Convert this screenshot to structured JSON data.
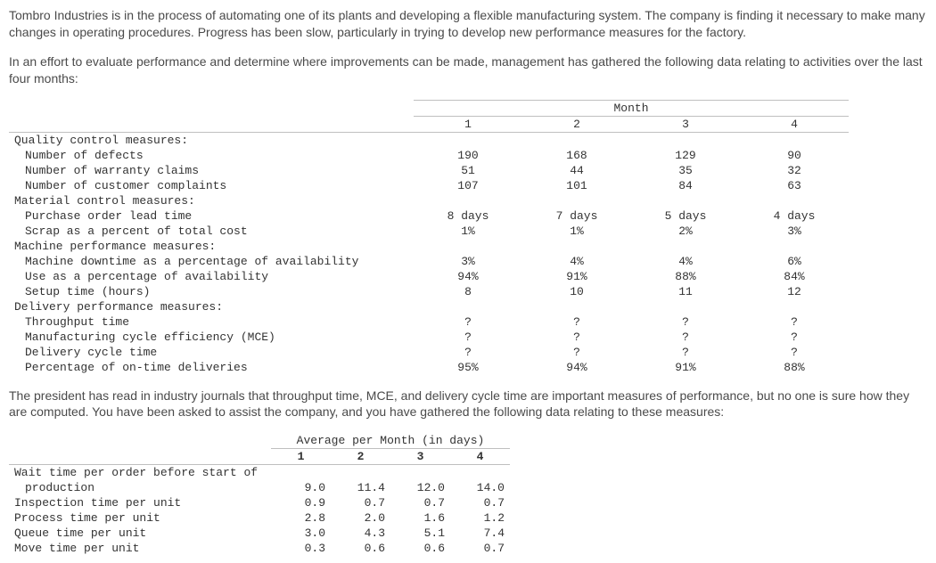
{
  "paragraphs": {
    "p1": "Tombro Industries is in the process of automating one of its plants and developing a flexible manufacturing system. The company is finding it necessary to make many changes in operating procedures. Progress has been slow, particularly in trying to develop new performance measures for the factory.",
    "p2": "In an effort to evaluate performance and determine where improvements can be made, management has gathered the following data relating to activities over the last four months:",
    "p3": "The president has read in industry journals that throughput time, MCE, and delivery cycle time are important measures of performance, but no one is sure how they are computed. You have been asked to assist the company, and you have gathered the following data relating to these measures:"
  },
  "main": {
    "group_header": "Month",
    "cols": [
      "1",
      "2",
      "3",
      "4"
    ],
    "sections": [
      {
        "label": "Quality control measures:",
        "rows": [
          {
            "label": "Number of defects",
            "v": [
              "190",
              "168",
              "129",
              "90"
            ]
          },
          {
            "label": "Number of warranty claims",
            "v": [
              "51",
              "44",
              "35",
              "32"
            ]
          },
          {
            "label": "Number of customer complaints",
            "v": [
              "107",
              "101",
              "84",
              "63"
            ]
          }
        ]
      },
      {
        "label": "Material control measures:",
        "rows": [
          {
            "label": "Purchase order lead time",
            "v": [
              "8 days",
              "7 days",
              "5 days",
              "4 days"
            ]
          },
          {
            "label": "Scrap as a percent of total cost",
            "v": [
              "1%",
              "1%",
              "2%",
              "3%"
            ]
          }
        ]
      },
      {
        "label": "Machine performance measures:",
        "rows": [
          {
            "label": "Machine downtime as a percentage of availability",
            "v": [
              "3%",
              "4%",
              "4%",
              "6%"
            ]
          },
          {
            "label": "Use as a percentage of availability",
            "v": [
              "94%",
              "91%",
              "88%",
              "84%"
            ]
          },
          {
            "label": "Setup time (hours)",
            "v": [
              "8",
              "10",
              "11",
              "12"
            ]
          }
        ]
      },
      {
        "label": "Delivery performance measures:",
        "rows": [
          {
            "label": "Throughput time",
            "v": [
              "?",
              "?",
              "?",
              "?"
            ]
          },
          {
            "label": "Manufacturing cycle efficiency (MCE)",
            "v": [
              "?",
              "?",
              "?",
              "?"
            ]
          },
          {
            "label": "Delivery cycle time",
            "v": [
              "?",
              "?",
              "?",
              "?"
            ]
          },
          {
            "label": "Percentage of on-time deliveries",
            "v": [
              "95%",
              "94%",
              "91%",
              "88%"
            ]
          }
        ]
      }
    ]
  },
  "avg": {
    "caption": "Average per Month (in days)",
    "cols": [
      "1",
      "2",
      "3",
      "4"
    ],
    "rows": [
      {
        "label": "Wait time per order before start of production",
        "v": [
          "9.0",
          "11.4",
          "12.0",
          "14.0"
        ]
      },
      {
        "label": "Inspection time per unit",
        "v": [
          "0.9",
          "0.7",
          "0.7",
          "0.7"
        ]
      },
      {
        "label": "Process time per unit",
        "v": [
          "2.8",
          "2.0",
          "1.6",
          "1.2"
        ]
      },
      {
        "label": "Queue time per unit",
        "v": [
          "3.0",
          "4.3",
          "5.1",
          "7.4"
        ]
      },
      {
        "label": "Move time per unit",
        "v": [
          "0.3",
          "0.6",
          "0.6",
          "0.7"
        ]
      }
    ]
  }
}
